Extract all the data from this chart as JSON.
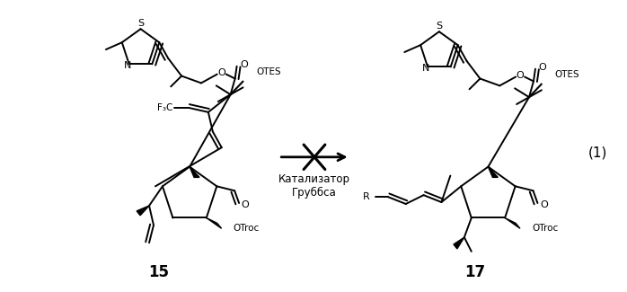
{
  "background_color": "#ffffff",
  "figsize": [
    6.98,
    3.25
  ],
  "dpi": 100,
  "arrow_label_line1": "Катализатор",
  "arrow_label_line2": "Груббса",
  "compound15_label": "15",
  "compound17_label": "17",
  "equation_number": "(1)",
  "font_size_labels": 12,
  "font_size_arrow_text": 8.5,
  "font_size_eq": 11,
  "lw": 1.4
}
